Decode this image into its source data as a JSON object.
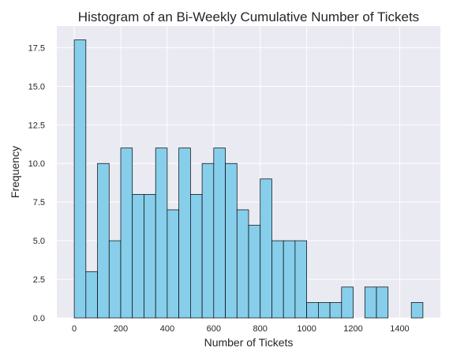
{
  "chart_data": {
    "type": "bar",
    "title": "Histogram of an Bi-Weekly Cumulative Number of Tickets",
    "xlabel": "Number of Tickets",
    "ylabel": "Frequency",
    "xlim": [
      -75,
      1575
    ],
    "ylim": [
      0,
      18.9
    ],
    "bin_width": 50,
    "bins": [
      {
        "start": 0,
        "end": 50,
        "count": 18
      },
      {
        "start": 50,
        "end": 100,
        "count": 3
      },
      {
        "start": 100,
        "end": 150,
        "count": 10
      },
      {
        "start": 150,
        "end": 200,
        "count": 5
      },
      {
        "start": 200,
        "end": 250,
        "count": 11
      },
      {
        "start": 250,
        "end": 300,
        "count": 8
      },
      {
        "start": 300,
        "end": 350,
        "count": 8
      },
      {
        "start": 350,
        "end": 400,
        "count": 11
      },
      {
        "start": 400,
        "end": 450,
        "count": 7
      },
      {
        "start": 450,
        "end": 500,
        "count": 11
      },
      {
        "start": 500,
        "end": 550,
        "count": 8
      },
      {
        "start": 550,
        "end": 600,
        "count": 10
      },
      {
        "start": 600,
        "end": 650,
        "count": 11
      },
      {
        "start": 650,
        "end": 700,
        "count": 10
      },
      {
        "start": 700,
        "end": 750,
        "count": 7
      },
      {
        "start": 750,
        "end": 800,
        "count": 6
      },
      {
        "start": 800,
        "end": 850,
        "count": 9
      },
      {
        "start": 850,
        "end": 900,
        "count": 5
      },
      {
        "start": 900,
        "end": 950,
        "count": 5
      },
      {
        "start": 950,
        "end": 1000,
        "count": 5
      },
      {
        "start": 1000,
        "end": 1050,
        "count": 1
      },
      {
        "start": 1050,
        "end": 1100,
        "count": 1
      },
      {
        "start": 1100,
        "end": 1150,
        "count": 1
      },
      {
        "start": 1150,
        "end": 1200,
        "count": 2
      },
      {
        "start": 1200,
        "end": 1250,
        "count": 0
      },
      {
        "start": 1250,
        "end": 1300,
        "count": 2
      },
      {
        "start": 1300,
        "end": 1350,
        "count": 2
      },
      {
        "start": 1350,
        "end": 1400,
        "count": 0
      },
      {
        "start": 1400,
        "end": 1450,
        "count": 0
      },
      {
        "start": 1450,
        "end": 1500,
        "count": 1
      }
    ],
    "x_ticks": [
      0,
      200,
      400,
      600,
      800,
      1000,
      1200,
      1400
    ],
    "x_tick_labels": [
      "0",
      "200",
      "400",
      "600",
      "800",
      "1000",
      "1200",
      "1400"
    ],
    "y_ticks": [
      0,
      2.5,
      5,
      7.5,
      10,
      12.5,
      15,
      17.5
    ],
    "y_tick_labels": [
      "0.0",
      "2.5",
      "5.0",
      "7.5",
      "10.0",
      "12.5",
      "15.0",
      "17.5"
    ],
    "grid": true,
    "legend": "none",
    "colors": {
      "bar_fill": "#87ceeb",
      "bar_edge": "#000000",
      "plot_background": "#eaeaf2",
      "grid": "#ffffff",
      "text": "#262626"
    }
  }
}
